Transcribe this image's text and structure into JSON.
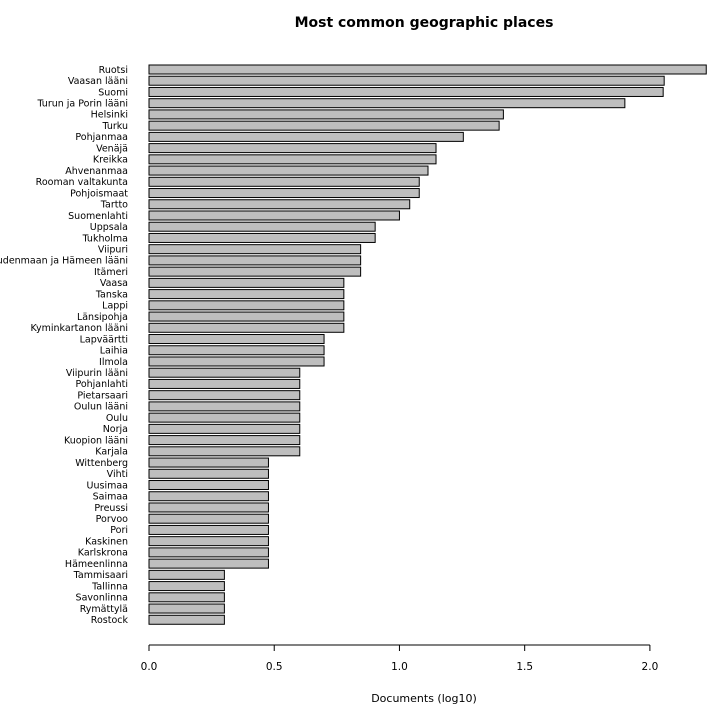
{
  "chart_data": {
    "type": "bar",
    "orientation": "horizontal",
    "title": "Most common geographic places",
    "xlabel": "Documents (log10)",
    "ylabel": "",
    "xlim": [
      0,
      2.22
    ],
    "xticks": [
      0,
      0.5,
      1,
      1.5,
      2
    ],
    "xtick_labels": [
      "0.0",
      "0.5",
      "1.0",
      "1.5",
      "2.0"
    ],
    "grid": false,
    "legend": "none",
    "bar_color": "#bebebe",
    "categories": [
      "Ruotsi",
      "Vaasan lääni",
      "Suomi",
      "Turun ja Porin lääni",
      "Helsinki",
      "Turku",
      "Pohjanmaa",
      "Venäjä",
      "Kreikka",
      "Ahvenanmaa",
      "Rooman valtakunta",
      "Pohjoismaat",
      "Tartto",
      "Suomenlahti",
      "Uppsala",
      "Tukholma",
      "Viipuri",
      "Uudenmaan ja Hämeen lääni",
      "Itämeri",
      "Vaasa",
      "Tanska",
      "Lappi",
      "Länsipohja",
      "Kyminkartanon lääni",
      "Lapväärtti",
      "Laihia",
      "Ilmola",
      "Viipurin lääni",
      "Pohjanlahti",
      "Pietarsaari",
      "Oulun lääni",
      "Oulu",
      "Norja",
      "Kuopion lääni",
      "Karjala",
      "Wittenberg",
      "Vihti",
      "Uusimaa",
      "Saimaa",
      "Preussi",
      "Porvoo",
      "Pori",
      "Kaskinen",
      "Karlskrona",
      "Hämeenlinna",
      "Tammisaari",
      "Tallinna",
      "Savonlinna",
      "Rymättylä",
      "Rostock"
    ],
    "values": [
      2.225,
      2.057,
      2.053,
      1.9,
      1.415,
      1.398,
      1.255,
      1.146,
      1.146,
      1.114,
      1.079,
      1.079,
      1.041,
      1.0,
      0.903,
      0.903,
      0.845,
      0.845,
      0.845,
      0.778,
      0.778,
      0.778,
      0.778,
      0.778,
      0.699,
      0.699,
      0.699,
      0.602,
      0.602,
      0.602,
      0.602,
      0.602,
      0.602,
      0.602,
      0.602,
      0.477,
      0.477,
      0.477,
      0.477,
      0.477,
      0.477,
      0.477,
      0.477,
      0.477,
      0.477,
      0.301,
      0.301,
      0.301,
      0.301,
      0.301
    ]
  }
}
